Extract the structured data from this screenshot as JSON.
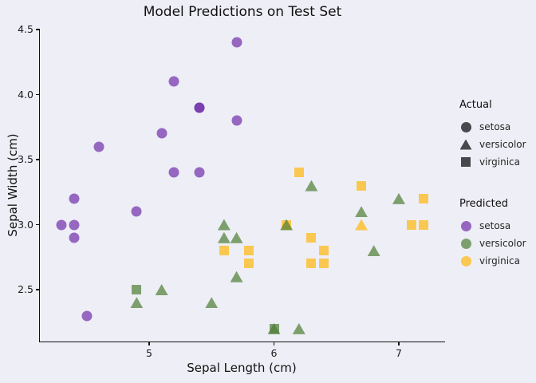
{
  "chart_data": {
    "type": "scatter",
    "title": "Model Predictions on Test Set",
    "xlabel": "Sepal Length (cm)",
    "ylabel": "Sepal Width (cm)",
    "xlim": [
      4.12,
      7.37
    ],
    "ylim": [
      2.09,
      4.52
    ],
    "grid": false,
    "background": "#EEEEF6",
    "xticks": {
      "values": [
        5,
        6,
        7
      ],
      "labels": [
        "5",
        "6",
        "7"
      ]
    },
    "yticks": {
      "values": [
        4.5,
        4.0,
        3.5,
        3.0,
        2.5
      ],
      "labels": [
        "4.5",
        "4.0",
        "3.5",
        "3.0",
        "2.5"
      ]
    },
    "shape_by_actual": {
      "setosa": "circle",
      "versicolor": "triangle",
      "virginica": "square"
    },
    "color_by_predicted": {
      "setosa": "#6F2DAA",
      "versicolor": "#4D7D33",
      "virginica": "#FFB70B"
    },
    "point_alpha": 0.7,
    "legend_shape_color": "#141418",
    "points": [
      {
        "x": 5.7,
        "y": 4.4,
        "actual": "setosa",
        "predicted": "setosa"
      },
      {
        "x": 5.2,
        "y": 4.1,
        "actual": "setosa",
        "predicted": "setosa"
      },
      {
        "x": 5.4,
        "y": 3.9,
        "actual": "setosa",
        "predicted": "setosa"
      },
      {
        "x": 5.4,
        "y": 3.9,
        "actual": "setosa",
        "predicted": "setosa"
      },
      {
        "x": 5.7,
        "y": 3.8,
        "actual": "setosa",
        "predicted": "setosa"
      },
      {
        "x": 5.1,
        "y": 3.7,
        "actual": "setosa",
        "predicted": "setosa"
      },
      {
        "x": 4.6,
        "y": 3.6,
        "actual": "setosa",
        "predicted": "setosa"
      },
      {
        "x": 5.2,
        "y": 3.4,
        "actual": "setosa",
        "predicted": "setosa"
      },
      {
        "x": 5.4,
        "y": 3.4,
        "actual": "setosa",
        "predicted": "setosa"
      },
      {
        "x": 4.4,
        "y": 3.2,
        "actual": "setosa",
        "predicted": "setosa"
      },
      {
        "x": 4.9,
        "y": 3.1,
        "actual": "setosa",
        "predicted": "setosa"
      },
      {
        "x": 4.3,
        "y": 3.0,
        "actual": "setosa",
        "predicted": "setosa"
      },
      {
        "x": 4.4,
        "y": 3.0,
        "actual": "setosa",
        "predicted": "setosa"
      },
      {
        "x": 4.4,
        "y": 2.9,
        "actual": "setosa",
        "predicted": "setosa"
      },
      {
        "x": 4.5,
        "y": 2.3,
        "actual": "setosa",
        "predicted": "setosa"
      },
      {
        "x": 6.2,
        "y": 3.4,
        "actual": "virginica",
        "predicted": "virginica"
      },
      {
        "x": 6.7,
        "y": 3.3,
        "actual": "virginica",
        "predicted": "virginica"
      },
      {
        "x": 7.2,
        "y": 3.2,
        "actual": "virginica",
        "predicted": "virginica"
      },
      {
        "x": 6.1,
        "y": 3.0,
        "actual": "virginica",
        "predicted": "virginica"
      },
      {
        "x": 7.1,
        "y": 3.0,
        "actual": "virginica",
        "predicted": "virginica"
      },
      {
        "x": 7.2,
        "y": 3.0,
        "actual": "virginica",
        "predicted": "virginica"
      },
      {
        "x": 6.3,
        "y": 2.9,
        "actual": "virginica",
        "predicted": "virginica"
      },
      {
        "x": 5.6,
        "y": 2.8,
        "actual": "virginica",
        "predicted": "virginica"
      },
      {
        "x": 5.8,
        "y": 2.8,
        "actual": "virginica",
        "predicted": "virginica"
      },
      {
        "x": 6.4,
        "y": 2.8,
        "actual": "virginica",
        "predicted": "virginica"
      },
      {
        "x": 5.8,
        "y": 2.7,
        "actual": "virginica",
        "predicted": "virginica"
      },
      {
        "x": 6.3,
        "y": 2.7,
        "actual": "virginica",
        "predicted": "virginica"
      },
      {
        "x": 6.4,
        "y": 2.7,
        "actual": "virginica",
        "predicted": "virginica"
      },
      {
        "x": 4.9,
        "y": 2.5,
        "actual": "virginica",
        "predicted": "versicolor"
      },
      {
        "x": 6.0,
        "y": 2.2,
        "actual": "virginica",
        "predicted": "versicolor"
      },
      {
        "x": 6.3,
        "y": 3.3,
        "actual": "versicolor",
        "predicted": "versicolor"
      },
      {
        "x": 7.0,
        "y": 3.2,
        "actual": "versicolor",
        "predicted": "versicolor"
      },
      {
        "x": 6.7,
        "y": 3.1,
        "actual": "versicolor",
        "predicted": "versicolor"
      },
      {
        "x": 5.6,
        "y": 3.0,
        "actual": "versicolor",
        "predicted": "versicolor"
      },
      {
        "x": 6.1,
        "y": 3.0,
        "actual": "versicolor",
        "predicted": "versicolor"
      },
      {
        "x": 6.7,
        "y": 3.0,
        "actual": "versicolor",
        "predicted": "virginica"
      },
      {
        "x": 5.6,
        "y": 2.9,
        "actual": "versicolor",
        "predicted": "versicolor"
      },
      {
        "x": 5.7,
        "y": 2.9,
        "actual": "versicolor",
        "predicted": "versicolor"
      },
      {
        "x": 6.8,
        "y": 2.8,
        "actual": "versicolor",
        "predicted": "versicolor"
      },
      {
        "x": 5.7,
        "y": 2.6,
        "actual": "versicolor",
        "predicted": "versicolor"
      },
      {
        "x": 5.1,
        "y": 2.5,
        "actual": "versicolor",
        "predicted": "versicolor"
      },
      {
        "x": 4.9,
        "y": 2.4,
        "actual": "versicolor",
        "predicted": "versicolor"
      },
      {
        "x": 5.5,
        "y": 2.4,
        "actual": "versicolor",
        "predicted": "versicolor"
      },
      {
        "x": 6.0,
        "y": 2.2,
        "actual": "versicolor",
        "predicted": "versicolor"
      },
      {
        "x": 6.2,
        "y": 2.2,
        "actual": "versicolor",
        "predicted": "versicolor"
      }
    ]
  },
  "legends": {
    "actual": {
      "title": "Actual",
      "items": [
        "setosa",
        "versicolor",
        "virginica"
      ]
    },
    "predicted": {
      "title": "Predicted",
      "items": [
        "setosa",
        "versicolor",
        "virginica"
      ]
    }
  }
}
